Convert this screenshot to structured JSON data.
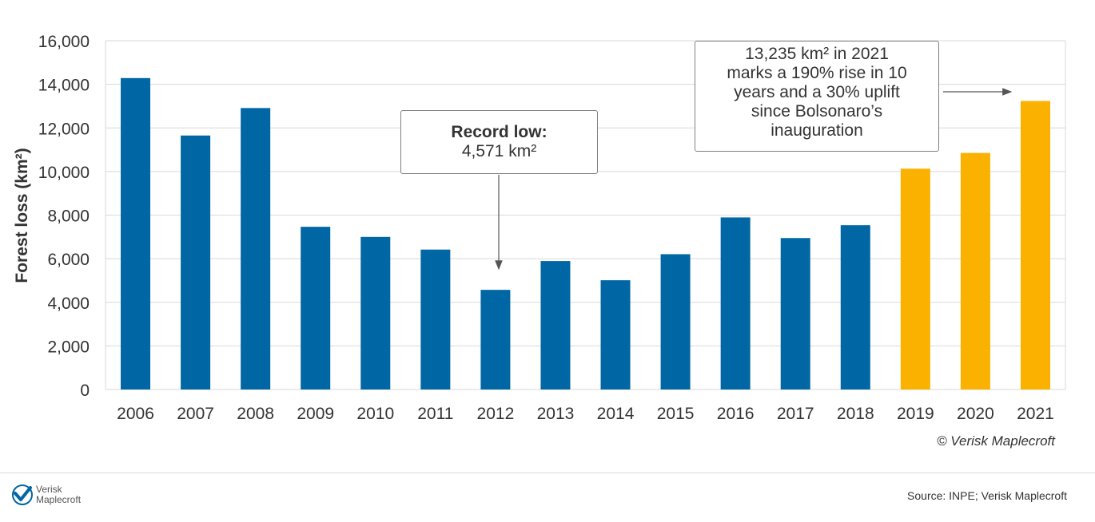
{
  "chart_data": {
    "type": "bar",
    "ylabel": "Forest loss (km²)",
    "xlabel": "",
    "ylim": [
      0,
      16000
    ],
    "yticks": [
      "0",
      "2,000",
      "4,000",
      "6,000",
      "8,000",
      "10,000",
      "12,000",
      "14,000",
      "16,000"
    ],
    "categories": [
      "2006",
      "2007",
      "2008",
      "2009",
      "2010",
      "2011",
      "2012",
      "2013",
      "2014",
      "2015",
      "2016",
      "2017",
      "2018",
      "2019",
      "2020",
      "2021"
    ],
    "values": [
      14286,
      11651,
      12911,
      7464,
      7000,
      6418,
      4571,
      5891,
      5012,
      6207,
      7893,
      6947,
      7536,
      10129,
      10851,
      13235
    ],
    "bar_colors": [
      "#0066a4",
      "#0066a4",
      "#0066a4",
      "#0066a4",
      "#0066a4",
      "#0066a4",
      "#0066a4",
      "#0066a4",
      "#0066a4",
      "#0066a4",
      "#0066a4",
      "#0066a4",
      "#0066a4",
      "#fbb100",
      "#fbb100",
      "#fbb100"
    ],
    "grid": true,
    "annotations": [
      {
        "target": "2012",
        "lines": [
          "Record low:",
          "4,571 km²"
        ]
      },
      {
        "target": "2021",
        "lines": [
          "13,235 km² in 2021",
          "marks a 190% rise in 10",
          "years and a 30% uplift",
          "since Bolsonaro’s",
          "inauguration"
        ]
      }
    ]
  },
  "credit": "© Verisk Maplecroft",
  "logo": {
    "line1": "Verisk",
    "line2": "Maplecroft",
    "icon": "verisk-checkmark-icon"
  },
  "source": "Source: INPE; Verisk Maplecroft"
}
